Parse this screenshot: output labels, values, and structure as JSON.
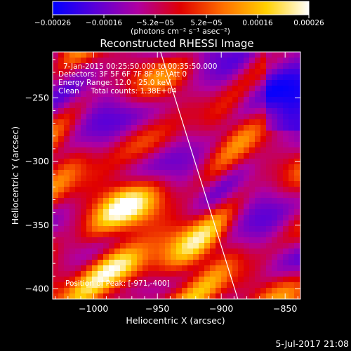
{
  "chart_data": {
    "type": "heatmap",
    "title": "Reconstructed RHESSI Image",
    "xlabel": "Heliocentric X (arcsec)",
    "ylabel": "Heliocentric Y (arcsec)",
    "xlim": [
      -1032,
      -838
    ],
    "ylim": [
      -408,
      -214
    ],
    "x_ticks": [
      -1000,
      -950,
      -900,
      -850
    ],
    "x_tick_labels": [
      "−1000",
      "−950",
      "−900",
      "−850"
    ],
    "y_ticks": [
      -250,
      -300,
      -350,
      -400
    ],
    "y_tick_labels": [
      "−250",
      "−300",
      "−350",
      "−400"
    ],
    "colorbar": {
      "range": [
        -0.00026,
        0.00026
      ],
      "tick_labels": [
        "−0.00026",
        "−0.00016",
        "−5.2e−05",
        "5.2e−05",
        "0.00016",
        "0.00026"
      ],
      "unit_text": "(photons cm⁻² s⁻¹ asec⁻²)",
      "colors": [
        "#0000ff",
        "#5a00d8",
        "#b000a0",
        "#e00000",
        "#ff7000",
        "#ffd000",
        "#ffffff"
      ]
    },
    "info_lines": [
      "7-Jan-2015 00:25:50.000 to 00:35:50.000",
      "Detectors: 3F 5F 6F 7F 8F 9F, Att 0",
      "Energy Range: 12.0 - 25.0 keV",
      "Clean     Total counts: 1.38E+04"
    ],
    "position_label": "Position of Peak: [-971,-400]",
    "limb_line": [
      [
        -947.5,
        -214
      ],
      [
        -887,
        -408
      ]
    ]
  },
  "footer": {
    "date": "5-Jul-2017 21:08"
  }
}
